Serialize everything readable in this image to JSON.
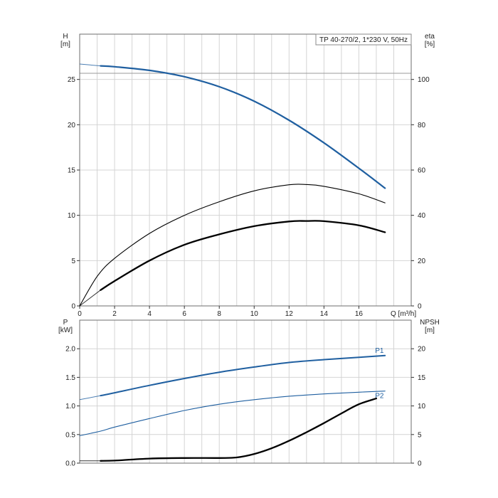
{
  "chart_data": [
    {
      "type": "line",
      "title": "TP 40-270/2, 1*230 V, 50Hz",
      "xlabel": "Q [m³/h]",
      "ylabel_left": [
        "H",
        "[m]"
      ],
      "ylabel_right": [
        "eta",
        "[%]"
      ],
      "xlim": [
        0,
        19
      ],
      "ylim_left": [
        0,
        30
      ],
      "ylim_right": [
        0,
        120
      ],
      "x_ticks": [
        "0",
        "2",
        "4",
        "6",
        "8",
        "10",
        "12",
        "14",
        "16"
      ],
      "y_ticks_left": [
        "0",
        "5",
        "10",
        "15",
        "20",
        "25"
      ],
      "y_ticks_right": [
        "0",
        "20",
        "40",
        "60",
        "80",
        "100"
      ],
      "grid": true,
      "series": [
        {
          "axis": "left",
          "color": "#1f5fa0",
          "dashed_extension": [
            [
              0,
              26.7
            ],
            [
              1.2,
              26.5
            ]
          ],
          "points": [
            [
              1.2,
              26.5
            ],
            [
              2,
              26.4
            ],
            [
              4,
              26.0
            ],
            [
              6,
              25.3
            ],
            [
              8,
              24.2
            ],
            [
              10,
              22.6
            ],
            [
              12,
              20.5
            ],
            [
              14,
              18.0
            ],
            [
              16,
              15.2
            ],
            [
              17.5,
              13.0
            ]
          ]
        },
        {
          "axis": "right",
          "color": "#000000",
          "points": [
            [
              0,
              0
            ],
            [
              1,
              13
            ],
            [
              2,
              21
            ],
            [
              4,
              32
            ],
            [
              6,
              40
            ],
            [
              8,
              46
            ],
            [
              10,
              50.8
            ],
            [
              12,
              53.5
            ],
            [
              13,
              53.6
            ],
            [
              14,
              52.8
            ],
            [
              16,
              49.5
            ],
            [
              17.5,
              45.5
            ]
          ]
        },
        {
          "axis": "right",
          "color": "#000000",
          "bold": true,
          "dashed_extension": [
            [
              0,
              0
            ],
            [
              1.2,
              7
            ]
          ],
          "points": [
            [
              1.2,
              7
            ],
            [
              2,
              11
            ],
            [
              4,
              20
            ],
            [
              6,
              27
            ],
            [
              8,
              31.6
            ],
            [
              10,
              35.2
            ],
            [
              12,
              37.3
            ],
            [
              13,
              37.5
            ],
            [
              14,
              37.4
            ],
            [
              16,
              35.6
            ],
            [
              17.5,
              32.5
            ]
          ]
        }
      ]
    },
    {
      "type": "line",
      "title": "",
      "xlabel": "",
      "ylabel_left": [
        "P",
        "[kW]"
      ],
      "ylabel_right": [
        "NPSH",
        "[m]"
      ],
      "xlim": [
        0,
        19
      ],
      "ylim_left": [
        0,
        2.5
      ],
      "ylim_right": [
        0,
        25
      ],
      "y_ticks_left": [
        "0.0",
        "0.5",
        "1.0",
        "1.5",
        "2.0"
      ],
      "y_ticks_right": [
        "0",
        "5",
        "10",
        "15",
        "20"
      ],
      "grid": true,
      "series": [
        {
          "name": "P1",
          "axis": "left",
          "color": "#1f5fa0",
          "dashed_extension": [
            [
              0,
              1.11
            ],
            [
              1.2,
              1.18
            ]
          ],
          "points": [
            [
              1.2,
              1.18
            ],
            [
              2,
              1.23
            ],
            [
              4,
              1.36
            ],
            [
              6,
              1.48
            ],
            [
              8,
              1.59
            ],
            [
              10,
              1.68
            ],
            [
              12,
              1.76
            ],
            [
              14,
              1.81
            ],
            [
              16,
              1.85
            ],
            [
              17.5,
              1.88
            ]
          ]
        },
        {
          "name": "P2",
          "axis": "left",
          "color": "#1f5fa0",
          "points": [
            [
              0,
              0.48
            ],
            [
              1.2,
              0.56
            ],
            [
              2,
              0.63
            ],
            [
              4,
              0.78
            ],
            [
              6,
              0.92
            ],
            [
              8,
              1.03
            ],
            [
              10,
              1.11
            ],
            [
              12,
              1.17
            ],
            [
              14,
              1.21
            ],
            [
              16,
              1.24
            ],
            [
              17.5,
              1.26
            ]
          ]
        },
        {
          "axis": "right",
          "color": "#000000",
          "bold": true,
          "dashed_extension": [
            [
              0,
              0.4
            ],
            [
              1.2,
              0.4
            ]
          ],
          "points": [
            [
              1.2,
              0.4
            ],
            [
              2,
              0.45
            ],
            [
              4,
              0.8
            ],
            [
              6,
              0.9
            ],
            [
              8,
              0.9
            ],
            [
              9,
              1.0
            ],
            [
              10,
              1.6
            ],
            [
              11,
              2.6
            ],
            [
              12,
              3.9
            ],
            [
              13,
              5.4
            ],
            [
              14,
              7.0
            ],
            [
              15,
              8.7
            ],
            [
              16,
              10.3
            ],
            [
              17,
              11.3
            ]
          ]
        }
      ]
    }
  ]
}
